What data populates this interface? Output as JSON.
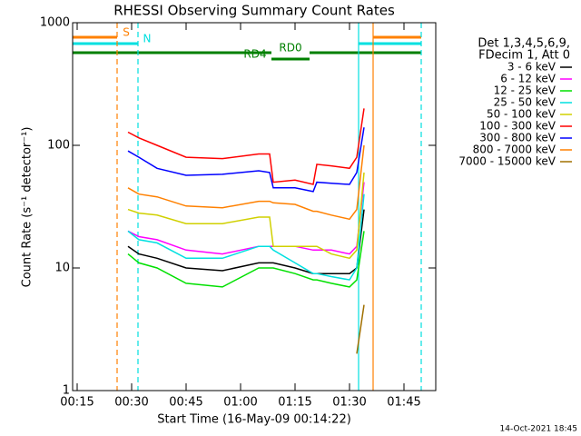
{
  "chart_data": {
    "type": "line",
    "title": "RHESSI Observing Summary Count Rates",
    "x_label": "Start Time (16-May-09 00:14:22)",
    "y_label": "Count Rate (s⁻¹ detector⁻¹)",
    "timestamp": "14-Oct-2021 18:45",
    "legend_title": [
      "Det 1,3,4,5,6,9,",
      "FDecim 1, Att 0"
    ],
    "log_y": true,
    "xlim": [
      "00:13:45",
      "01:53:45"
    ],
    "xticks": [
      "00:15",
      "00:30",
      "00:45",
      "01:00",
      "01:15",
      "01:30",
      "01:45"
    ],
    "ylim": [
      1,
      1000
    ],
    "yticks": [
      1,
      10,
      100,
      1000
    ],
    "x": [
      "00:29",
      "00:32",
      "00:37",
      "00:45",
      "00:55",
      "01:05",
      "01:08",
      "01:09",
      "01:15",
      "01:20",
      "01:21",
      "01:25",
      "01:30",
      "01:32",
      "01:34"
    ],
    "series": [
      {
        "name": "3 - 6 keV",
        "color": "#000000",
        "values": [
          15,
          13,
          12,
          10,
          9.5,
          11,
          11,
          11,
          10,
          9,
          9,
          9,
          9,
          10,
          30
        ]
      },
      {
        "name": "6 - 12 keV",
        "color": "#ff00ff",
        "values": [
          20,
          18,
          17,
          14,
          13,
          15,
          15,
          15,
          15,
          14,
          14,
          14,
          13,
          15,
          50
        ]
      },
      {
        "name": "12 - 25 keV",
        "color": "#00e000",
        "values": [
          13,
          11,
          10,
          7.5,
          7,
          10,
          10,
          10,
          9,
          8,
          8,
          7.5,
          7,
          8,
          20
        ]
      },
      {
        "name": "25 - 50 keV",
        "color": "#00e0e0",
        "values": [
          20,
          17,
          16,
          12,
          12,
          15,
          15,
          14,
          11,
          9,
          9,
          8.5,
          8,
          10,
          40
        ]
      },
      {
        "name": "50 - 100 keV",
        "color": "#d0d000",
        "values": [
          30,
          28,
          27,
          23,
          23,
          26,
          26,
          15,
          15,
          15,
          15,
          13,
          12,
          14,
          60
        ]
      },
      {
        "name": "100 - 300 keV",
        "color": "#ff0000",
        "values": [
          128,
          115,
          100,
          80,
          78,
          85,
          85,
          50,
          52,
          48,
          70,
          68,
          65,
          80,
          200
        ]
      },
      {
        "name": "300 - 800 keV",
        "color": "#0000ff",
        "values": [
          90,
          80,
          65,
          57,
          58,
          62,
          60,
          45,
          45,
          42,
          50,
          49,
          48,
          60,
          140
        ]
      },
      {
        "name": "800 - 7000 keV",
        "color": "#ff8000",
        "values": [
          45,
          40,
          38,
          32,
          31,
          35,
          35,
          34,
          33,
          29,
          29,
          27,
          25,
          30,
          100
        ]
      },
      {
        "name": "7000 - 15000 keV",
        "color": "#a07000",
        "values": [
          null,
          null,
          null,
          null,
          null,
          null,
          null,
          null,
          null,
          null,
          null,
          null,
          null,
          2,
          5
        ]
      }
    ],
    "markers": [
      {
        "x": "00:26:00",
        "color": "#ff8000",
        "dashed": true
      },
      {
        "x": "00:31:45",
        "color": "#00e0e0",
        "dashed": true
      },
      {
        "x": "01:32:30",
        "color": "#00e0e0",
        "dashed": false
      },
      {
        "x": "01:36:30",
        "color": "#ff8000",
        "dashed": false
      },
      {
        "x": "01:49:45",
        "color": "#00e0e0",
        "dashed": true
      }
    ],
    "flags": [
      {
        "label": "S",
        "color": "#ff8000",
        "intervals": [
          [
            "00:13:45",
            "00:26:00"
          ],
          [
            "01:36:30",
            "01:49:45"
          ]
        ]
      },
      {
        "label": "N",
        "color": "#00e0e0",
        "intervals": [
          [
            "00:13:45",
            "00:31:45"
          ],
          [
            "01:32:30",
            "01:49:45"
          ]
        ]
      },
      {
        "label": "RD0",
        "color": "#008000",
        "intervals": [
          [
            "00:13:45",
            "01:08:30"
          ],
          [
            "01:19:00",
            "01:49:45"
          ]
        ]
      },
      {
        "label": "RD4",
        "color": "#008000",
        "intervals": [
          [
            "01:08:30",
            "01:19:00"
          ]
        ]
      }
    ]
  }
}
